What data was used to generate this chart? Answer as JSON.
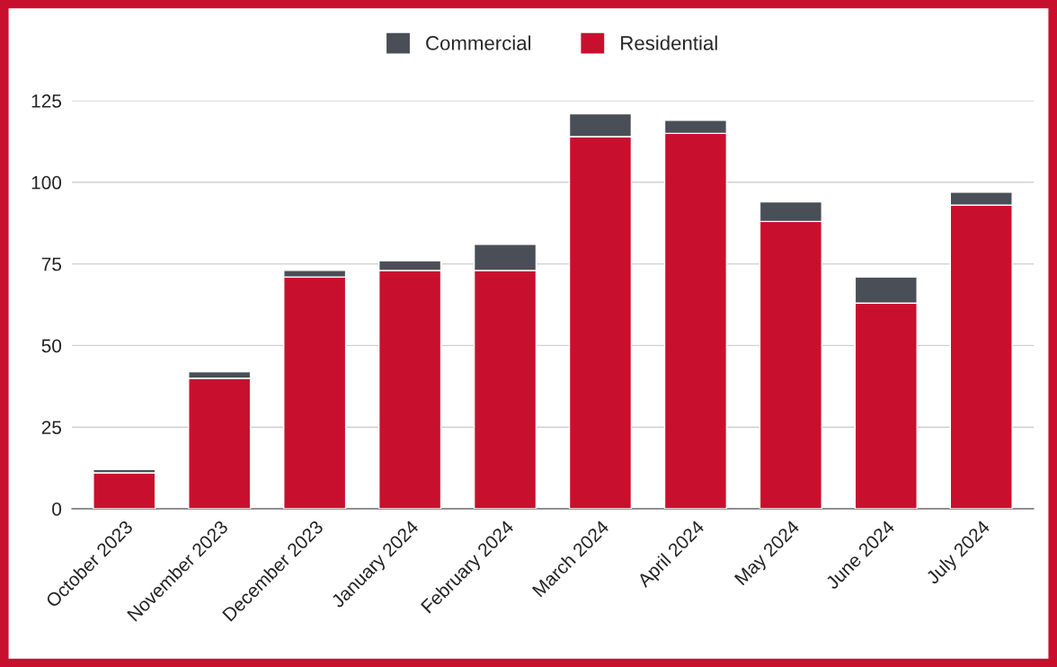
{
  "chart_data": {
    "type": "bar",
    "stacked": true,
    "categories": [
      "October 2023",
      "November 2023",
      "December 2023",
      "January 2024",
      "February 2024",
      "March 2024",
      "April 2024",
      "May 2024",
      "June 2024",
      "July 2024"
    ],
    "series": [
      {
        "name": "Residential",
        "color": "#c8102e",
        "values": [
          11,
          40,
          71,
          73,
          73,
          114,
          115,
          88,
          63,
          93
        ]
      },
      {
        "name": "Commercial",
        "color": "#4a4f57",
        "values": [
          1,
          2,
          2,
          3,
          8,
          7,
          4,
          6,
          8,
          4
        ]
      }
    ],
    "ylim": [
      0,
      125
    ],
    "yticks": [
      0,
      25,
      50,
      75,
      100,
      125
    ],
    "grid": "y",
    "legend": "top"
  }
}
